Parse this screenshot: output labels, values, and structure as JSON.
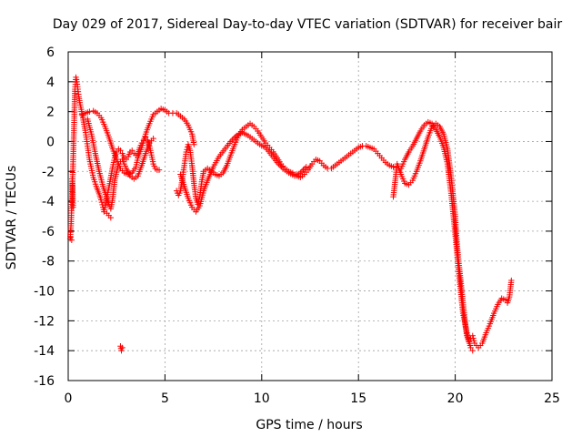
{
  "chart_data": {
    "type": "scatter",
    "title": "Day 029 of 2017, Sidereal Day-to-day VTEC variation (SDTVAR) for receiver bair",
    "xlabel": "GPS time / hours",
    "ylabel": "SDTVAR / TECUs",
    "xlim": [
      0,
      25
    ],
    "ylim": [
      -16,
      6
    ],
    "xticks": [
      0,
      5,
      10,
      15,
      20,
      25
    ],
    "yticks": [
      -16,
      -14,
      -12,
      -10,
      -8,
      -6,
      -4,
      -2,
      0,
      2,
      4,
      6
    ],
    "grid": true,
    "marker": "+",
    "color": "#ff0000",
    "series": [
      {
        "points": [
          [
            0.1,
            -6.5
          ],
          [
            0.15,
            -5.5
          ],
          [
            0.2,
            -3.5
          ],
          [
            0.25,
            -1.5
          ],
          [
            0.3,
            1.0
          ],
          [
            0.35,
            3.5
          ],
          [
            0.4,
            4.3
          ],
          [
            0.45,
            4.0
          ],
          [
            0.5,
            3.5
          ],
          [
            0.55,
            3.0
          ],
          [
            0.6,
            2.6
          ],
          [
            0.7,
            2.0
          ],
          [
            0.8,
            1.3
          ],
          [
            0.9,
            0.6
          ],
          [
            1.0,
            -0.3
          ],
          [
            1.1,
            -1.2
          ],
          [
            1.2,
            -1.8
          ],
          [
            1.3,
            -2.4
          ],
          [
            1.45,
            -3.0
          ],
          [
            1.6,
            -3.5
          ],
          [
            1.7,
            -3.9
          ],
          [
            1.8,
            -4.4
          ],
          [
            1.85,
            -4.7
          ],
          [
            1.9,
            -4.4
          ],
          [
            2.0,
            -3.7
          ],
          [
            2.1,
            -3.1
          ],
          [
            2.2,
            -2.4
          ],
          [
            2.3,
            -1.7
          ],
          [
            2.4,
            -1.1
          ],
          [
            2.5,
            -0.7
          ],
          [
            2.6,
            -0.5
          ],
          [
            2.7,
            -0.6
          ],
          [
            2.8,
            -0.8
          ],
          [
            2.9,
            -1.1
          ],
          [
            3.0,
            -1.2
          ],
          [
            3.1,
            -1.0
          ],
          [
            3.2,
            -0.7
          ],
          [
            3.3,
            -0.6
          ],
          [
            3.4,
            -0.8
          ],
          [
            3.5,
            -0.9
          ],
          [
            3.6,
            -0.8
          ],
          [
            3.7,
            -0.4
          ],
          [
            3.8,
            -0.1
          ],
          [
            3.9,
            0.1
          ],
          [
            4.0,
            0.3
          ],
          [
            4.1,
            0.1
          ],
          [
            4.2,
            -0.3
          ],
          [
            4.3,
            -0.9
          ],
          [
            4.4,
            -1.5
          ],
          [
            4.5,
            -1.8
          ],
          [
            4.6,
            -1.9
          ],
          [
            4.7,
            -1.9
          ]
        ]
      },
      {
        "points": [
          [
            0.7,
            1.8
          ],
          [
            0.9,
            1.9
          ],
          [
            1.1,
            2.0
          ],
          [
            1.3,
            2.05
          ],
          [
            1.5,
            1.9
          ],
          [
            1.7,
            1.6
          ],
          [
            1.9,
            1.0
          ],
          [
            2.1,
            0.3
          ],
          [
            2.3,
            -0.5
          ],
          [
            2.5,
            -1.2
          ],
          [
            2.7,
            -1.8
          ],
          [
            2.9,
            -2.1
          ],
          [
            3.1,
            -2.2
          ],
          [
            3.3,
            -2.1
          ],
          [
            3.5,
            -1.7
          ],
          [
            3.6,
            -1.1
          ],
          [
            3.8,
            -0.4
          ],
          [
            4.0,
            0.5
          ],
          [
            4.2,
            1.2
          ],
          [
            4.4,
            1.8
          ],
          [
            4.6,
            2.0
          ],
          [
            4.8,
            2.2
          ],
          [
            5.0,
            2.1
          ],
          [
            5.2,
            1.9
          ],
          [
            5.4,
            1.9
          ],
          [
            5.6,
            1.9
          ],
          [
            5.8,
            1.7
          ],
          [
            6.0,
            1.5
          ],
          [
            6.2,
            1.1
          ],
          [
            6.4,
            0.5
          ],
          [
            6.5,
            -0.2
          ]
        ]
      },
      {
        "points": [
          [
            1.0,
            1.5
          ],
          [
            1.2,
            0.5
          ],
          [
            1.4,
            -0.8
          ],
          [
            1.6,
            -2.0
          ],
          [
            1.8,
            -3.0
          ],
          [
            2.0,
            -3.8
          ],
          [
            2.1,
            -4.2
          ],
          [
            2.2,
            -4.5
          ],
          [
            2.3,
            -3.8
          ],
          [
            2.4,
            -2.6
          ],
          [
            2.6,
            -1.5
          ],
          [
            2.8,
            -1.2
          ],
          [
            3.0,
            -1.8
          ],
          [
            3.2,
            -2.3
          ],
          [
            3.4,
            -2.5
          ],
          [
            3.6,
            -2.3
          ],
          [
            3.8,
            -1.6
          ],
          [
            4.0,
            -0.8
          ],
          [
            4.2,
            -0.1
          ],
          [
            4.4,
            0.2
          ]
        ]
      },
      {
        "points": [
          [
            5.6,
            -3.3
          ],
          [
            5.7,
            -3.6
          ],
          [
            5.8,
            -3.3
          ],
          [
            5.9,
            -2.5
          ],
          [
            6.0,
            -1.6
          ],
          [
            6.1,
            -0.7
          ],
          [
            6.2,
            -0.2
          ],
          [
            6.3,
            -0.6
          ],
          [
            6.4,
            -1.6
          ],
          [
            6.5,
            -2.8
          ],
          [
            6.6,
            -3.8
          ],
          [
            6.7,
            -4.2
          ],
          [
            6.8,
            -3.7
          ],
          [
            6.9,
            -2.7
          ],
          [
            7.0,
            -2.0
          ],
          [
            7.2,
            -1.8
          ],
          [
            7.4,
            -2.0
          ],
          [
            7.6,
            -2.2
          ],
          [
            7.8,
            -2.3
          ],
          [
            8.0,
            -2.1
          ],
          [
            8.2,
            -1.6
          ],
          [
            8.4,
            -0.9
          ],
          [
            8.6,
            -0.2
          ],
          [
            8.8,
            0.4
          ],
          [
            9.0,
            0.8
          ],
          [
            9.2,
            1.0
          ],
          [
            9.4,
            1.2
          ],
          [
            9.6,
            1.0
          ],
          [
            9.8,
            0.7
          ],
          [
            10.0,
            0.3
          ],
          [
            10.2,
            -0.1
          ],
          [
            10.4,
            -0.4
          ],
          [
            10.6,
            -0.7
          ],
          [
            10.8,
            -1.1
          ],
          [
            11.0,
            -1.5
          ],
          [
            11.2,
            -1.8
          ],
          [
            11.4,
            -2.0
          ],
          [
            11.6,
            -2.1
          ],
          [
            11.8,
            -2.3
          ],
          [
            12.0,
            -2.4
          ],
          [
            12.2,
            -2.2
          ],
          [
            12.4,
            -1.9
          ],
          [
            12.6,
            -1.5
          ],
          [
            12.8,
            -1.2
          ],
          [
            13.0,
            -1.3
          ],
          [
            13.2,
            -1.6
          ],
          [
            13.4,
            -1.8
          ],
          [
            13.6,
            -1.8
          ],
          [
            13.8,
            -1.6
          ],
          [
            14.0,
            -1.4
          ],
          [
            14.2,
            -1.2
          ],
          [
            14.4,
            -1.0
          ],
          [
            14.6,
            -0.8
          ],
          [
            14.8,
            -0.6
          ],
          [
            15.0,
            -0.4
          ],
          [
            15.2,
            -0.3
          ],
          [
            15.4,
            -0.3
          ],
          [
            15.6,
            -0.4
          ],
          [
            15.8,
            -0.5
          ],
          [
            16.0,
            -0.8
          ],
          [
            16.2,
            -1.1
          ],
          [
            16.4,
            -1.4
          ],
          [
            16.6,
            -1.6
          ],
          [
            16.8,
            -1.7
          ]
        ]
      },
      {
        "points": [
          [
            5.8,
            -2.2
          ],
          [
            6.0,
            -3.0
          ],
          [
            6.2,
            -3.8
          ],
          [
            6.4,
            -4.4
          ],
          [
            6.6,
            -4.7
          ],
          [
            6.8,
            -4.3
          ],
          [
            7.0,
            -3.3
          ],
          [
            7.2,
            -2.6
          ],
          [
            7.5,
            -1.7
          ],
          [
            7.8,
            -1.0
          ],
          [
            8.1,
            -0.5
          ],
          [
            8.4,
            0.0
          ],
          [
            8.7,
            0.4
          ],
          [
            9.0,
            0.6
          ],
          [
            9.3,
            0.4
          ],
          [
            9.6,
            0.1
          ],
          [
            9.9,
            -0.2
          ],
          [
            10.2,
            -0.4
          ],
          [
            10.5,
            -0.9
          ],
          [
            10.8,
            -1.4
          ],
          [
            11.1,
            -1.8
          ],
          [
            11.4,
            -2.1
          ],
          [
            11.7,
            -2.3
          ],
          [
            12.0,
            -2.1
          ],
          [
            12.3,
            -1.7
          ]
        ]
      },
      {
        "points": [
          [
            16.8,
            -3.7
          ],
          [
            17.0,
            -1.5
          ],
          [
            17.2,
            -2.2
          ],
          [
            17.4,
            -2.8
          ],
          [
            17.6,
            -2.9
          ],
          [
            17.8,
            -2.6
          ],
          [
            18.0,
            -2.0
          ],
          [
            18.2,
            -1.3
          ],
          [
            18.4,
            -0.5
          ],
          [
            18.6,
            0.3
          ],
          [
            18.8,
            1.0
          ],
          [
            19.0,
            1.2
          ],
          [
            19.2,
            1.0
          ],
          [
            19.4,
            0.5
          ],
          [
            19.6,
            -0.5
          ],
          [
            19.8,
            -2.5
          ],
          [
            20.0,
            -5.0
          ],
          [
            20.1,
            -7.0
          ],
          [
            20.2,
            -8.3
          ],
          [
            20.3,
            -9.5
          ],
          [
            20.4,
            -10.8
          ],
          [
            20.5,
            -12.0
          ],
          [
            20.6,
            -13.0
          ],
          [
            20.7,
            -13.4
          ],
          [
            20.8,
            -13.2
          ],
          [
            20.9,
            -13.0
          ],
          [
            21.0,
            -13.5
          ],
          [
            21.2,
            -13.8
          ],
          [
            21.4,
            -13.5
          ],
          [
            21.6,
            -12.8
          ],
          [
            21.8,
            -12.2
          ],
          [
            22.0,
            -11.5
          ],
          [
            22.2,
            -10.9
          ],
          [
            22.4,
            -10.5
          ],
          [
            22.6,
            -10.6
          ],
          [
            22.7,
            -10.8
          ],
          [
            22.8,
            -10.4
          ],
          [
            22.9,
            -9.3
          ]
        ]
      },
      {
        "points": [
          [
            17.2,
            -1.8
          ],
          [
            17.4,
            -1.2
          ],
          [
            17.6,
            -0.7
          ],
          [
            17.8,
            -0.3
          ],
          [
            18.0,
            0.2
          ],
          [
            18.2,
            0.7
          ],
          [
            18.4,
            1.1
          ],
          [
            18.6,
            1.3
          ],
          [
            18.8,
            1.2
          ],
          [
            19.0,
            0.8
          ],
          [
            19.2,
            0.3
          ],
          [
            19.4,
            -0.4
          ],
          [
            19.6,
            -1.5
          ],
          [
            19.8,
            -3.6
          ],
          [
            20.0,
            -6.2
          ],
          [
            20.2,
            -9.0
          ],
          [
            20.4,
            -11.5
          ],
          [
            20.6,
            -12.8
          ],
          [
            20.8,
            -13.8
          ],
          [
            20.9,
            -14.0
          ]
        ]
      },
      {
        "points": [
          [
            2.7,
            -13.7
          ],
          [
            2.75,
            -14.0
          ],
          [
            2.8,
            -13.8
          ],
          [
            0.12,
            -6.4
          ],
          [
            0.18,
            -6.6
          ],
          [
            0.2,
            -2.5
          ],
          [
            0.22,
            -3.0
          ],
          [
            0.25,
            -4.4
          ],
          [
            2.2,
            -5.1
          ],
          [
            2.0,
            -4.8
          ]
        ]
      }
    ]
  }
}
